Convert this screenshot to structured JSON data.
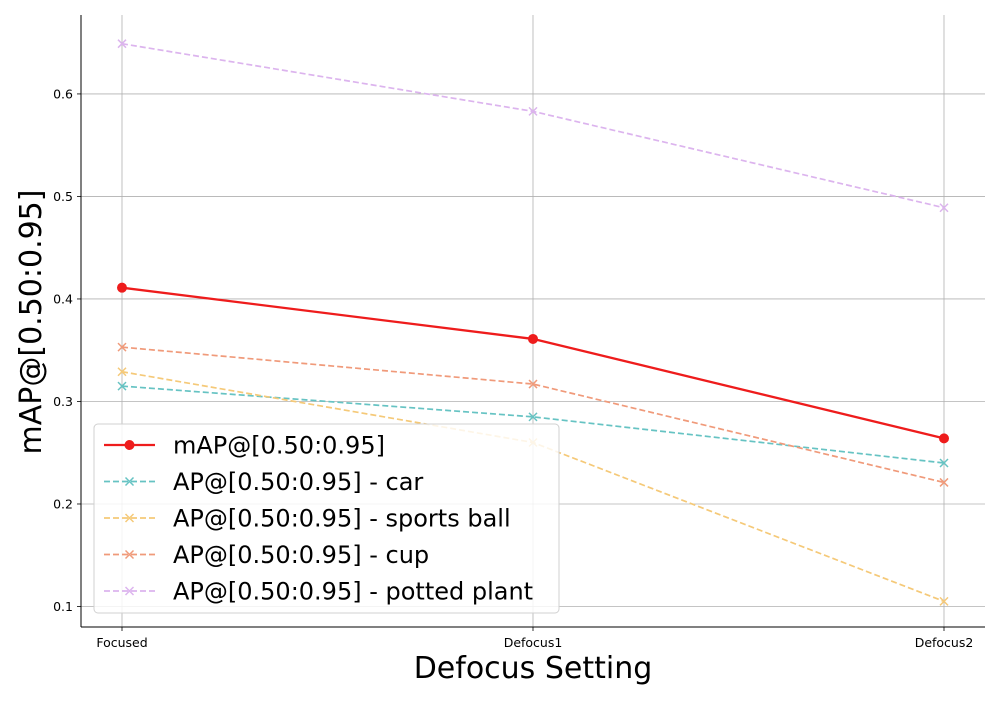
{
  "chart_data": {
    "type": "line",
    "title": "",
    "xlabel": "Defocus Setting",
    "ylabel": "mAP@[0.50:0.95]",
    "categories": [
      "Focused",
      "Defocus1",
      "Defocus2"
    ],
    "ylim": [
      0.08,
      0.677
    ],
    "yticks": [
      "0.1",
      "0.2",
      "0.3",
      "0.4",
      "0.5",
      "0.6"
    ],
    "grid": true,
    "legend": "lower-left",
    "series": [
      {
        "name": "mAP@[0.50:0.95]",
        "values": [
          0.411,
          0.361,
          0.264
        ],
        "color": "#ee1c1c",
        "style": "solid",
        "marker": "circle"
      },
      {
        "name": "AP@[0.50:0.95] - car",
        "values": [
          0.315,
          0.285,
          0.24
        ],
        "color": "#66c3c3",
        "style": "dashed",
        "marker": "x"
      },
      {
        "name": "AP@[0.50:0.95] - sports ball",
        "values": [
          0.329,
          0.26,
          0.105
        ],
        "color": "#f5c978",
        "style": "dashed",
        "marker": "x"
      },
      {
        "name": "AP@[0.50:0.95] - cup",
        "values": [
          0.353,
          0.317,
          0.221
        ],
        "color": "#f09a7a",
        "style": "dashed",
        "marker": "x"
      },
      {
        "name": "AP@[0.50:0.95] - potted plant",
        "values": [
          0.649,
          0.583,
          0.489
        ],
        "color": "#dcb4ee",
        "style": "dashed",
        "marker": "x"
      }
    ]
  }
}
